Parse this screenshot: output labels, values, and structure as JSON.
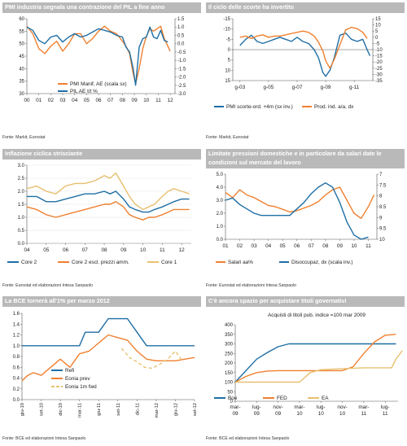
{
  "panels": [
    {
      "title": "PMI industria segnala una contrazione del PIL a fine anno",
      "source": "Fonte: Markit, Eurostat"
    },
    {
      "title": "Il ciclo delle scorte ha invertito",
      "source": "Fonte: Markit, Eurostat"
    },
    {
      "title": "Inflazione ciclica strisciante",
      "source": "Fonte: Eurostat ed elaborazioni Intesa Sanpaolo"
    },
    {
      "title": "Limitate pressioni domestiche e in particolare da salari date le condizioni sul mercato del lavoro",
      "source": "Fonte: Eurostat ed elaborazioni Intesa Sanpaolo"
    },
    {
      "title": "La BCE tornerà all'1% per marzo 2012",
      "source": "Fonte: BCE ed elaborazioni Intesa Sanpaolo"
    },
    {
      "title": "C'è ancora spazio per acquistare titoli governativi",
      "source": "Fonte: BCE ed elaborazioni Intesa Sanpaolo"
    }
  ],
  "colors": {
    "blue": "#1f6fa5",
    "orange": "#f08030",
    "gold": "#e8c070",
    "header": "#b9b9b9"
  },
  "chart_data": [
    {
      "type": "line",
      "title": "PMI industria segnala una contrazione del PIL a fine anno",
      "x_ticks": [
        "00",
        "01",
        "02",
        "03",
        "04",
        "05",
        "06",
        "07",
        "08",
        "09",
        "10",
        "11",
        "12"
      ],
      "ylim_left": [
        30,
        60
      ],
      "y_ticks_left": [
        "60",
        "55",
        "50",
        "45",
        "40",
        "35",
        "30"
      ],
      "ylim_right": [
        -3.0,
        1.5
      ],
      "y_ticks_right": [
        "1.5",
        "1.0",
        "0.5",
        "0.0",
        "-0.5",
        "-1.0",
        "-1.5",
        "-2.0",
        "-2.5",
        "-3.0"
      ],
      "legend_position": "bottom-center",
      "series": [
        {
          "name": "PMI Manif. AE (scala sx)",
          "axis": "left",
          "color": "#f08030",
          "x": [
            2000,
            2000.5,
            2001,
            2001.5,
            2002,
            2002.5,
            2003,
            2003.5,
            2004,
            2004.5,
            2005,
            2005.5,
            2006,
            2006.5,
            2007,
            2007.5,
            2008,
            2008.3,
            2008.6,
            2008.9,
            2009.1,
            2009.4,
            2009.7,
            2010,
            2010.3,
            2010.6,
            2010.9,
            2011.2,
            2011.5,
            2011.8,
            2012
          ],
          "y": [
            57,
            54,
            48,
            46,
            49,
            51,
            47,
            50,
            54,
            54,
            50,
            52,
            55,
            57,
            55,
            54,
            51,
            49,
            46,
            38,
            34,
            40,
            48,
            53,
            56,
            55,
            56,
            57,
            52,
            49,
            47
          ]
        },
        {
          "name": "PIL AE t/t %",
          "axis": "right",
          "color": "#1f6fa5",
          "x": [
            2000,
            2000.5,
            2001,
            2001.5,
            2002,
            2002.5,
            2003,
            2003.5,
            2004,
            2004.5,
            2005,
            2005.5,
            2006,
            2006.5,
            2007,
            2007.5,
            2008,
            2008.3,
            2008.6,
            2008.9,
            2009.1,
            2009.4,
            2009.7,
            2010,
            2010.3,
            2010.6,
            2010.9,
            2011.2,
            2011.5,
            2011.8
          ],
          "y": [
            1.0,
            0.8,
            0.2,
            0.0,
            0.4,
            0.5,
            0.1,
            0.4,
            0.6,
            0.4,
            0.5,
            0.7,
            0.9,
            0.8,
            0.7,
            0.5,
            0.4,
            -0.2,
            -0.5,
            -1.5,
            -2.5,
            -0.2,
            0.3,
            0.4,
            1.0,
            0.4,
            0.3,
            0.8,
            0.2,
            0.1
          ]
        }
      ]
    },
    {
      "type": "line",
      "title": "Il ciclo delle scorte ha invertito",
      "x_ticks": [
        "g-03",
        "g-05",
        "g-07",
        "g-09",
        "g-11"
      ],
      "ylim_left": [
        15,
        -15
      ],
      "y_ticks_left": [
        "-15",
        "-10",
        "-5",
        "0",
        "5",
        "10",
        "15"
      ],
      "ylim_right": [
        -35,
        15
      ],
      "y_ticks_right": [
        "15",
        "10",
        "5",
        "0",
        "-5",
        "-10",
        "-15",
        "-20",
        "-25",
        "-30",
        "-35"
      ],
      "legend_position": "bottom-center",
      "series": [
        {
          "name": "PMI scorte-ord. +4m (sx inv.)",
          "axis": "left",
          "color": "#1f6fa5",
          "x": [
            2003,
            2003.4,
            2003.8,
            2004.2,
            2004.6,
            2005,
            2005.4,
            2005.8,
            2006.2,
            2006.6,
            2007,
            2007.4,
            2007.8,
            2008.2,
            2008.5,
            2008.8,
            2009,
            2009.3,
            2009.6,
            2010,
            2010.4,
            2010.8,
            2011.2,
            2011.6,
            2011.9,
            2012.1
          ],
          "y": [
            -2,
            -5,
            -7,
            -4,
            -3,
            -4,
            -5,
            -6,
            -5,
            -4,
            -6,
            -4,
            -3,
            0,
            4,
            11,
            13,
            10,
            4,
            -7,
            -8,
            -5,
            -4,
            -5,
            0,
            3
          ]
        },
        {
          "name": "Prod. ind. a/a, dx",
          "axis": "right",
          "color": "#f08030",
          "x": [
            2003,
            2003.4,
            2003.8,
            2004.2,
            2004.6,
            2005,
            2005.4,
            2005.8,
            2006.2,
            2006.6,
            2007,
            2007.4,
            2007.8,
            2008.2,
            2008.5,
            2008.8,
            2009,
            2009.3,
            2009.6,
            2010,
            2010.4,
            2010.8,
            2011.2,
            2011.6,
            2011.9
          ],
          "y": [
            0,
            1,
            -1,
            1,
            2,
            0,
            1,
            1,
            2,
            3,
            4,
            5,
            4,
            1,
            -4,
            -11,
            -19,
            -25,
            -18,
            -6,
            6,
            8,
            7,
            4,
            -1
          ]
        }
      ]
    },
    {
      "type": "line",
      "title": "Inflazione ciclica strisciante",
      "x_ticks": [
        "04",
        "05",
        "06",
        "07",
        "08",
        "09",
        "10",
        "11",
        "12"
      ],
      "ylim": [
        0,
        3
      ],
      "y_ticks": [
        "3.0",
        "2.5",
        "2.0",
        "1.5",
        "1.0",
        "0.5",
        "0.0"
      ],
      "legend_position": "bottom-center",
      "series": [
        {
          "name": "Core 2",
          "color": "#1f6fa5",
          "x": [
            2004,
            2004.5,
            2005,
            2005.5,
            2006,
            2006.5,
            2007,
            2007.5,
            2008,
            2008.3,
            2008.6,
            2009,
            2009.3,
            2009.6,
            2010,
            2010.3,
            2010.6,
            2011,
            2011.3,
            2011.6,
            2012,
            2012.4
          ],
          "y": [
            1.8,
            1.8,
            1.6,
            1.6,
            1.7,
            1.8,
            1.9,
            1.9,
            2.0,
            1.9,
            2.0,
            1.7,
            1.4,
            1.3,
            1.2,
            1.2,
            1.3,
            1.4,
            1.5,
            1.6,
            1.7,
            1.7
          ]
        },
        {
          "name": "Core 2  escl. prezzi amm.",
          "color": "#f08030",
          "x": [
            2004,
            2004.5,
            2005,
            2005.5,
            2006,
            2006.5,
            2007,
            2007.5,
            2008,
            2008.3,
            2008.6,
            2009,
            2009.3,
            2009.6,
            2010,
            2010.3,
            2010.6,
            2011,
            2011.3,
            2011.6,
            2012,
            2012.4
          ],
          "y": [
            1.4,
            1.3,
            1.1,
            1.0,
            1.1,
            1.2,
            1.3,
            1.4,
            1.5,
            1.5,
            1.6,
            1.4,
            1.1,
            1.0,
            0.9,
            1.0,
            1.0,
            1.1,
            1.2,
            1.3,
            1.3,
            1.3
          ]
        },
        {
          "name": "Core 1",
          "color": "#e8c070",
          "x": [
            2004,
            2004.5,
            2005,
            2005.5,
            2006,
            2006.5,
            2007,
            2007.5,
            2008,
            2008.3,
            2008.6,
            2009,
            2009.3,
            2009.6,
            2010,
            2010.3,
            2010.6,
            2011,
            2011.3,
            2011.6,
            2012,
            2012.4
          ],
          "y": [
            2.1,
            2.2,
            2.0,
            1.9,
            2.2,
            2.3,
            2.3,
            2.4,
            2.6,
            2.5,
            2.7,
            2.2,
            1.8,
            1.5,
            1.3,
            1.4,
            1.5,
            1.8,
            2.0,
            2.1,
            2.0,
            1.9
          ]
        }
      ]
    },
    {
      "type": "line",
      "title": "Limitate pressioni domestiche e in particolare da salari date le condizioni sul mercato del lavoro",
      "x_ticks": [
        "01",
        "02",
        "03",
        "04",
        "05",
        "06",
        "07",
        "08",
        "09",
        "10",
        "11"
      ],
      "ylim_left": [
        0,
        5
      ],
      "y_ticks_left": [
        "5.0",
        "4.0",
        "3.0",
        "2.0",
        "1.0",
        "0.0"
      ],
      "ylim_right": [
        10,
        7
      ],
      "y_ticks_right": [
        "7",
        "7.5",
        "8",
        "8.5",
        "9",
        "9.5",
        "10"
      ],
      "legend_position": "bottom-center",
      "series": [
        {
          "name": "Salari aa%",
          "axis": "left",
          "color": "#f08030",
          "x": [
            2001,
            2001.5,
            2002,
            2002.5,
            2003,
            2003.5,
            2004,
            2004.5,
            2005,
            2005.5,
            2006,
            2006.5,
            2007,
            2007.5,
            2008,
            2008.5,
            2009,
            2009.5,
            2010,
            2010.5,
            2011,
            2011.4
          ],
          "y": [
            3.6,
            3.2,
            3.8,
            3.4,
            3.2,
            2.9,
            2.6,
            2.5,
            2.3,
            2.1,
            2.2,
            2.4,
            2.6,
            2.9,
            3.4,
            3.8,
            4.0,
            3.0,
            2.0,
            1.6,
            2.5,
            3.4
          ]
        },
        {
          "name": "Disoccupaz, dx (scala inv.)",
          "axis": "right",
          "color": "#1f6fa5",
          "x": [
            2001,
            2001.5,
            2002,
            2002.5,
            2003,
            2003.5,
            2004,
            2004.5,
            2005,
            2005.5,
            2006,
            2006.5,
            2007,
            2007.5,
            2008,
            2008.5,
            2009,
            2009.5,
            2010,
            2010.5,
            2011
          ],
          "y": [
            8.2,
            8.1,
            8.4,
            8.6,
            8.8,
            8.9,
            8.9,
            8.9,
            8.9,
            8.9,
            8.6,
            8.3,
            7.9,
            7.6,
            7.4,
            7.6,
            8.3,
            9.2,
            9.8,
            10.0,
            9.9
          ]
        }
      ]
    },
    {
      "type": "line",
      "title": "La BCE tornerà all'1% per marzo 2012",
      "x_ticks": [
        "giu-10",
        "set-10",
        "dic-10",
        "mar-11",
        "giu-11",
        "set-11",
        "dic-11",
        "mar-12",
        "giu-12",
        "set-12"
      ],
      "ylim": [
        0,
        1.6
      ],
      "y_ticks": [
        "1.6",
        "1.4",
        "1.2",
        "1.0",
        "0.8",
        "0.6",
        "0.4",
        "0.2",
        "0.0"
      ],
      "legend_position": "bottom-center",
      "series": [
        {
          "name": "Refi",
          "color": "#1f6fa5",
          "x": [
            0,
            1,
            2,
            3,
            3.3,
            4,
            4.5,
            5,
            5.5,
            6,
            6.5,
            7,
            8,
            9
          ],
          "y": [
            1.0,
            1.0,
            1.0,
            1.0,
            1.25,
            1.25,
            1.5,
            1.5,
            1.5,
            1.25,
            1.0,
            1.0,
            1.0,
            1.0
          ]
        },
        {
          "name": "Eonia prev",
          "color": "#f08030",
          "x": [
            0,
            0.3,
            0.6,
            1,
            1.5,
            2,
            2.5,
            3,
            3.5,
            4,
            4.5,
            5,
            5.5,
            6,
            6.5,
            7,
            8,
            9
          ],
          "y": [
            0.35,
            0.45,
            0.5,
            0.45,
            0.6,
            0.75,
            0.6,
            0.85,
            0.9,
            1.05,
            1.2,
            1.15,
            1.1,
            0.9,
            0.75,
            0.72,
            0.72,
            0.78
          ]
        },
        {
          "name": "Eonia 1m fwd",
          "color": "#e8c070",
          "dashed": true,
          "x": [
            5.2,
            5.6,
            6.0,
            6.4,
            6.8,
            7.2,
            7.6,
            8.0,
            8.4
          ],
          "y": [
            0.95,
            0.78,
            0.7,
            0.6,
            0.58,
            0.66,
            0.75,
            0.9,
            0.7
          ]
        }
      ]
    },
    {
      "type": "line",
      "title": "C'è ancora spazio per acquistare titoli governativi",
      "subtitle": "Acquisti di titoli pub. indice =100 mar 2009",
      "x_ticks": [
        "mar-09",
        "lug-09",
        "nov-09",
        "mar-10",
        "lug-10",
        "nov-10",
        "mar-11",
        "lug-11"
      ],
      "ylim": [
        0,
        400
      ],
      "y_ticks": [
        "400",
        "350",
        "300",
        "250",
        "200",
        "150",
        "100",
        "50",
        "0"
      ],
      "legend_position": "bottom-center",
      "series": [
        {
          "name": "Boe",
          "color": "#1f6fa5",
          "x": [
            0,
            0.5,
            1,
            1.5,
            2,
            2.5,
            3,
            4,
            5,
            6,
            7,
            7.5
          ],
          "y": [
            100,
            160,
            220,
            255,
            285,
            300,
            300,
            300,
            300,
            300,
            300,
            300
          ]
        },
        {
          "name": "FED",
          "color": "#f08030",
          "x": [
            0,
            0.5,
            1,
            1.5,
            2,
            3,
            4,
            5,
            5.5,
            6,
            6.5,
            7,
            7.5
          ],
          "y": [
            100,
            130,
            150,
            158,
            160,
            160,
            160,
            160,
            180,
            250,
            310,
            345,
            350
          ]
        },
        {
          "name": "EA",
          "color": "#e8c070",
          "x": [
            0,
            1,
            2,
            3,
            3.5,
            4,
            5,
            6,
            7,
            7.3,
            7.5,
            7.8
          ],
          "y": [
            100,
            100,
            100,
            100,
            150,
            165,
            170,
            175,
            175,
            175,
            220,
            265
          ]
        }
      ]
    }
  ]
}
